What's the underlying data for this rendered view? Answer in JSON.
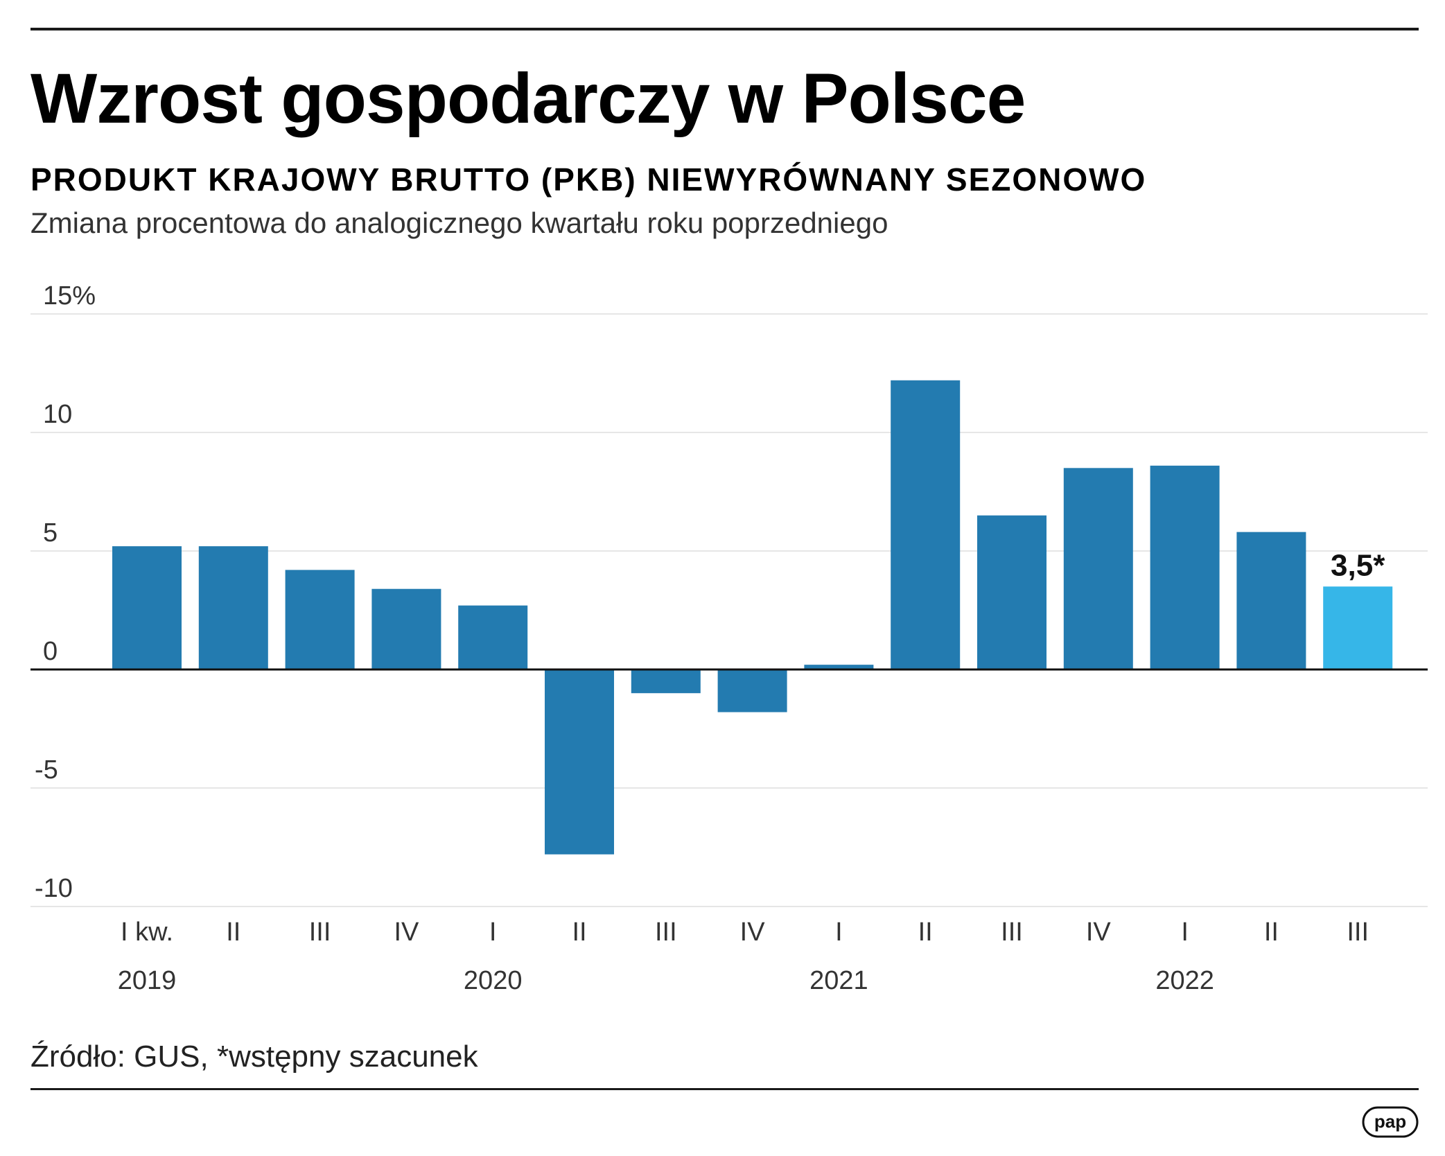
{
  "title": "Wzrost gospodarczy w Polsce",
  "subtitle": "PRODUKT KRAJOWY BRUTTO (PKB) NIEWYRÓWNANY SEZONOWO",
  "description": "Zmiana procentowa do analogicznego kwartału roku poprzedniego",
  "source": "Źródło: GUS, *wstępny szacunek",
  "logo_text": "pap",
  "colors": {
    "bar": "#237bb0",
    "highlight": "#36b6e8",
    "grid": "#e6e6e6",
    "axis": "#111111"
  },
  "chart_data": {
    "type": "bar",
    "ylim": [
      -10,
      15
    ],
    "yticks": [
      15,
      10,
      5,
      0,
      -5,
      -10
    ],
    "ytick_labels": [
      "15%",
      "10",
      "5",
      "0",
      "-5",
      "-10"
    ],
    "categories": [
      "I kw.",
      "II",
      "III",
      "IV",
      "I",
      "II",
      "III",
      "IV",
      "I",
      "II",
      "III",
      "IV",
      "I",
      "II",
      "III"
    ],
    "years": [
      {
        "label": "2019",
        "index": 0
      },
      {
        "label": "2020",
        "index": 4
      },
      {
        "label": "2021",
        "index": 8
      },
      {
        "label": "2022",
        "index": 12
      }
    ],
    "values": [
      5.2,
      5.2,
      4.2,
      3.4,
      2.7,
      -7.8,
      -1.0,
      -1.8,
      0.2,
      12.2,
      6.5,
      8.5,
      8.6,
      5.8,
      3.5
    ],
    "highlight_index": 14,
    "annotation": {
      "index": 14,
      "label": "3,5*"
    }
  }
}
